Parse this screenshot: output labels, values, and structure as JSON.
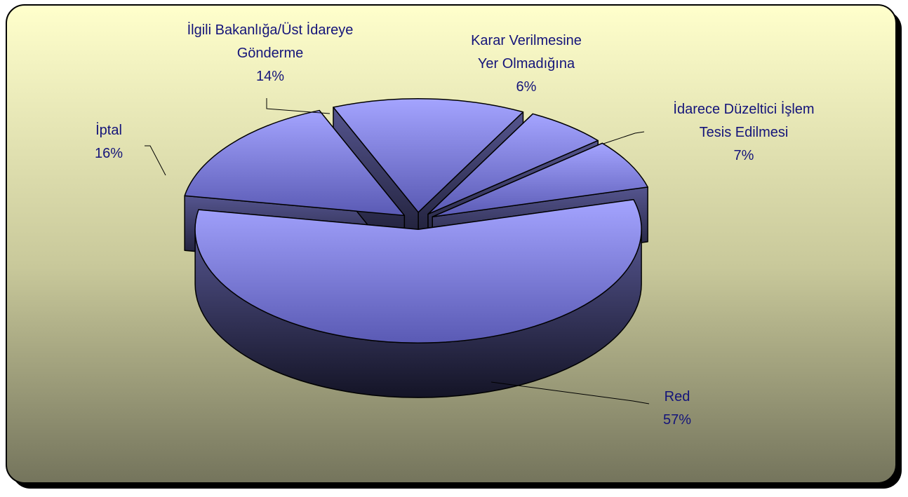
{
  "chart_data": {
    "type": "pie",
    "categories": [
      "Red",
      "İptal",
      "İlgili Bakanlığa/Üst İdareye Gönderme",
      "Karar Verilmesine Yer Olmadığına",
      "İdarece Düzeltici İşlem Tesis Edilmesi"
    ],
    "values": [
      57,
      16,
      14,
      6,
      7
    ],
    "value_labels": [
      "57%",
      "16%",
      "14%",
      "6%",
      "7%"
    ],
    "color": "#9494f5"
  }
}
